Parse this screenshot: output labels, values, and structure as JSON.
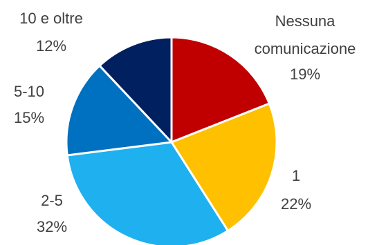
{
  "chart_data": {
    "type": "pie",
    "title": "",
    "slices": [
      {
        "label_lines": [
          "Nessuna",
          "comunicazione"
        ],
        "percent_label": "19%",
        "value": 19,
        "color": "#C00000"
      },
      {
        "label_lines": [
          "1"
        ],
        "percent_label": "22%",
        "value": 22,
        "color": "#FFC000"
      },
      {
        "label_lines": [
          "2-5"
        ],
        "percent_label": "32%",
        "value": 32,
        "color": "#1FB0F0"
      },
      {
        "label_lines": [
          "5-10"
        ],
        "percent_label": "15%",
        "value": 15,
        "color": "#0070C0"
      },
      {
        "label_lines": [
          "10 e oltre"
        ],
        "percent_label": "12%",
        "value": 12,
        "color": "#002060"
      }
    ],
    "start_angle_deg": 0,
    "direction": "clockwise",
    "legend": "none",
    "label_position": "outside"
  }
}
